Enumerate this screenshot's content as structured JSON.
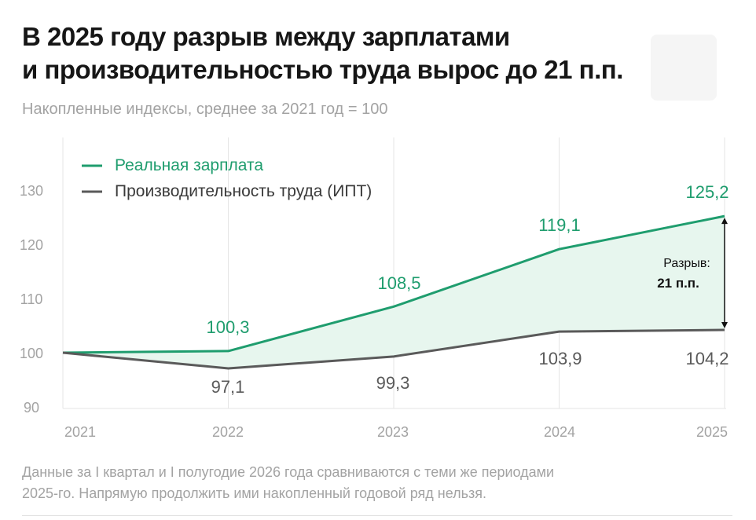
{
  "header": {
    "title_line1": "В 2025 году разрыв между зарплатами",
    "title_line2": "и производительностью труда вырос до 21 п.п.",
    "subtitle": "Накопленные индексы, среднее за 2021 год = 100"
  },
  "footnote": {
    "line1": "Данные за I квартал и I полугодие 2026 года сравниваются с теми же периодами",
    "line2": "2025-го. Напрямую продолжить ими накопленный годовой ряд нельзя."
  },
  "colors": {
    "wage": "#1f9d6e",
    "productivity": "#5a5a5a",
    "gap_fill": "#e7f6ee",
    "axis_text": "#a3a3a3",
    "grid": "#e5e5e5"
  },
  "chart_data": {
    "type": "line",
    "title": "В 2025 году разрыв между зарплатами и производительностью труда вырос до 21 п.п.",
    "subtitle": "Накопленные индексы, среднее за 2021 год = 100",
    "x": [
      "2021",
      "2022",
      "2023",
      "2024",
      "2025"
    ],
    "ylim": [
      90,
      130
    ],
    "yticks": [
      "90",
      "100",
      "110",
      "120",
      "130"
    ],
    "grid": "vertical",
    "legend_position": "top-left",
    "series": [
      {
        "name": "Реальная зарплата",
        "values": [
          100,
          100.3,
          108.5,
          119.1,
          125.2
        ],
        "labels": [
          "",
          "100,3",
          "108,5",
          "119,1",
          "125,2"
        ]
      },
      {
        "name": "Производительность труда (ИПТ)",
        "values": [
          100,
          97.1,
          99.3,
          103.9,
          104.2
        ],
        "labels": [
          "",
          "97,1",
          "99,3",
          "103,9",
          "104,2"
        ]
      }
    ],
    "annotation": {
      "label_line1": "Разрыв:",
      "label_line2": "21 п.п."
    }
  }
}
